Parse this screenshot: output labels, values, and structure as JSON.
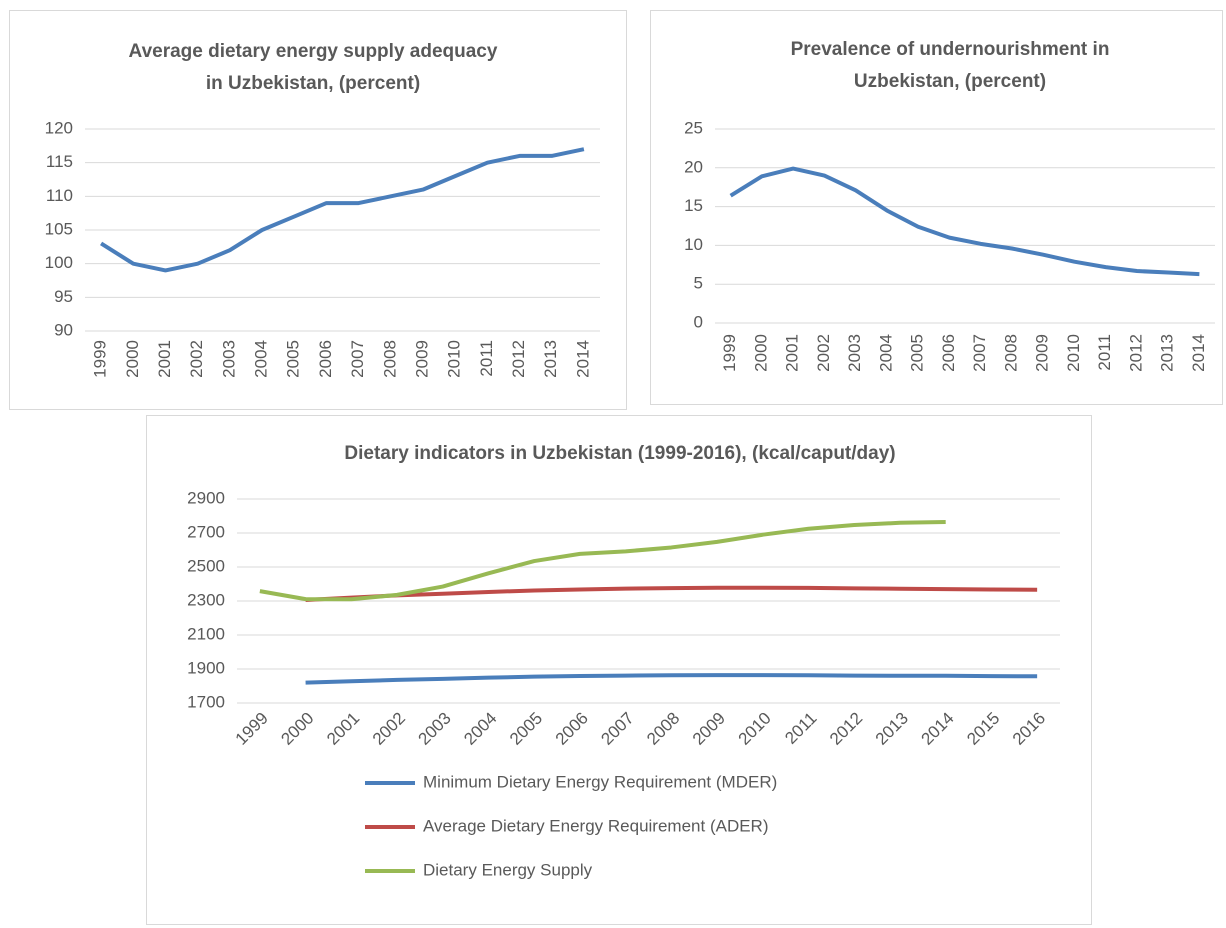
{
  "chart_data": [
    {
      "type": "line",
      "title": [
        "Average dietary energy supply adequacy",
        "in Uzbekistan, (percent)"
      ],
      "categories": [
        "1999",
        "2000",
        "2001",
        "2002",
        "2003",
        "2004",
        "2005",
        "2006",
        "2007",
        "2008",
        "2009",
        "2010",
        "2011",
        "2012",
        "2013",
        "2014"
      ],
      "series": [
        {
          "name": "Average dietary energy supply adequacy",
          "color": "#4a7ebb",
          "values": [
            103,
            100,
            99,
            100,
            102,
            105,
            107,
            109,
            109,
            110,
            111,
            113,
            115,
            116,
            116,
            117
          ]
        }
      ],
      "ylim": [
        90,
        120
      ],
      "yticks": [
        90,
        95,
        100,
        105,
        110,
        115,
        120
      ],
      "grid": true
    },
    {
      "type": "line",
      "title": [
        "Prevalence of undernourishment in",
        "Uzbekistan, (percent)"
      ],
      "categories": [
        "1999",
        "2000",
        "2001",
        "2002",
        "2003",
        "2004",
        "2005",
        "2006",
        "2007",
        "2008",
        "2009",
        "2010",
        "2011",
        "2012",
        "2013",
        "2014"
      ],
      "series": [
        {
          "name": "Prevalence of undernourishment",
          "color": "#4a7ebb",
          "values": [
            16.4,
            18.9,
            19.9,
            19,
            17.1,
            14.5,
            12.4,
            11,
            10.2,
            9.6,
            8.8,
            7.9,
            7.2,
            6.7,
            6.5,
            6.3
          ]
        }
      ],
      "ylim": [
        0,
        25
      ],
      "yticks": [
        0,
        5,
        10,
        15,
        20,
        25
      ],
      "grid": true
    },
    {
      "type": "line",
      "title": [
        "Dietary indicators in Uzbekistan (1999-2016), (kcal/caput/day)"
      ],
      "categories": [
        "1999",
        "2000",
        "2001",
        "2002",
        "2003",
        "2004",
        "2005",
        "2006",
        "2007",
        "2008",
        "2009",
        "2010",
        "2011",
        "2012",
        "2013",
        "2014",
        "2015",
        "2016"
      ],
      "series": [
        {
          "name": "Minimum Dietary Energy Requirement (MDER)",
          "color": "#4a7ebb",
          "values": [
            null,
            1820,
            1828,
            1836,
            1842,
            1849,
            1855,
            1859,
            1861,
            1863,
            1864,
            1864,
            1863,
            1861,
            1860,
            1860,
            1858,
            1857
          ]
        },
        {
          "name": "Average Dietary Energy Requirement (ADER)",
          "color": "#be4b48",
          "values": [
            null,
            2306,
            2320,
            2333,
            2343,
            2353,
            2362,
            2368,
            2373,
            2376,
            2378,
            2378,
            2377,
            2374,
            2372,
            2370,
            2368,
            2366
          ]
        },
        {
          "name": "Dietary Energy Supply",
          "color": "#98b954",
          "values": [
            2358,
            2311,
            2310,
            2336,
            2385,
            2463,
            2535,
            2577,
            2592,
            2615,
            2648,
            2690,
            2725,
            2747,
            2760,
            2765,
            null,
            null
          ]
        }
      ],
      "ylim": [
        1700,
        2900
      ],
      "yticks": [
        1700,
        1900,
        2100,
        2300,
        2500,
        2700,
        2900
      ],
      "grid": true,
      "legend": "bottom"
    }
  ]
}
